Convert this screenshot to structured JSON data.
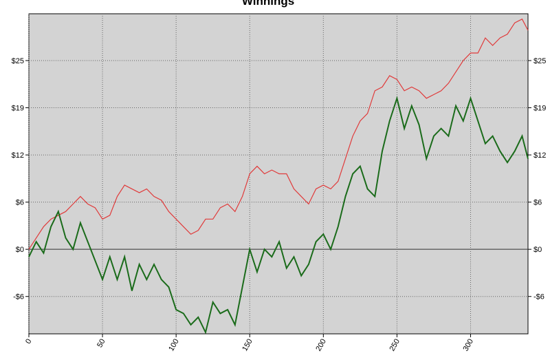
{
  "chart_data": {
    "type": "line",
    "title": "Winnings",
    "x": [
      0,
      5,
      10,
      15,
      20,
      25,
      30,
      35,
      40,
      45,
      50,
      55,
      60,
      65,
      70,
      75,
      80,
      85,
      90,
      95,
      100,
      105,
      110,
      115,
      120,
      125,
      130,
      135,
      140,
      145,
      150,
      155,
      160,
      165,
      170,
      175,
      180,
      185,
      190,
      195,
      200,
      205,
      210,
      215,
      220,
      225,
      230,
      235,
      240,
      245,
      250,
      255,
      260,
      265,
      270,
      275,
      280,
      285,
      290,
      295,
      300,
      305,
      310,
      315,
      320,
      325,
      330,
      335,
      339
    ],
    "series": [
      {
        "color": "#e03a3a",
        "values": [
          0,
          1.5,
          3,
          4,
          4.5,
          5,
          6,
          7,
          6,
          5.5,
          4,
          4.5,
          7,
          8.5,
          8,
          7.5,
          8,
          7,
          6.5,
          5,
          4,
          3,
          2,
          2.5,
          4,
          4,
          5.5,
          6,
          5,
          7,
          10,
          11,
          10,
          10.5,
          10,
          10,
          8,
          7,
          6,
          8,
          8.5,
          8,
          9,
          12,
          15,
          17,
          18,
          21,
          21.5,
          23,
          22.5,
          21,
          21.5,
          21,
          20,
          20.5,
          21,
          22,
          23.5,
          25,
          26,
          26,
          28,
          27,
          28,
          28.5,
          30,
          30.5,
          29
        ]
      },
      {
        "color": "#1a6b1a",
        "values": [
          -1,
          1,
          -0.5,
          3,
          5,
          1.5,
          0,
          3.5,
          1,
          -1.5,
          -4,
          -1,
          -4,
          -1,
          -5.5,
          -2,
          -4,
          -2,
          -4,
          -5,
          -8,
          -8.5,
          -10,
          -9,
          -11,
          -7,
          -8.5,
          -8,
          -10,
          -5,
          0,
          -3,
          0,
          -1,
          1,
          -2.5,
          -1,
          -3.5,
          -2,
          1,
          2,
          0,
          3,
          7,
          10,
          11,
          8,
          7,
          13,
          17,
          20,
          16,
          19,
          16.5,
          12,
          15,
          16,
          15,
          19,
          17,
          20,
          17,
          14,
          15,
          13,
          11.5,
          13,
          15,
          12
        ]
      }
    ],
    "xlim": [
      0,
      339
    ],
    "xticks": [
      0,
      50,
      100,
      150,
      200,
      250,
      300
    ],
    "ylim": [
      -11.2,
      31.2
    ],
    "yticks": [
      {
        "value": -6.25,
        "label": "-$6"
      },
      {
        "value": 0,
        "label": "$0"
      },
      {
        "value": 6.25,
        "label": "$6"
      },
      {
        "value": 12.5,
        "label": "$12"
      },
      {
        "value": 18.75,
        "label": "$19"
      },
      {
        "value": 25,
        "label": "$25"
      }
    ],
    "grid": true
  }
}
